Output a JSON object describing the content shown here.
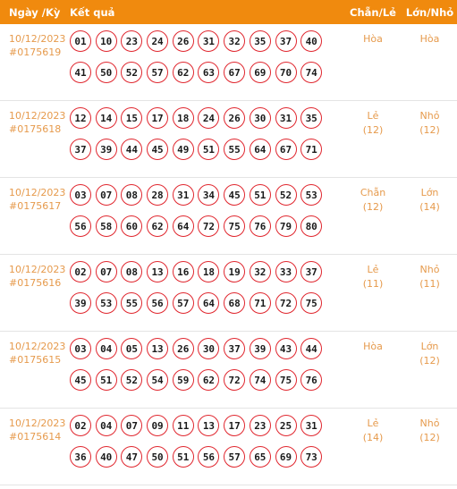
{
  "header": {
    "date": "Ngày /Kỳ",
    "result": "Kết quả",
    "even_odd": "Chẵn/Lẻ",
    "big_small": "Lớn/Nhỏ"
  },
  "rows": [
    {
      "date": "10/12/2023",
      "id": "#0175619",
      "line1": [
        "01",
        "10",
        "23",
        "24",
        "26",
        "31",
        "32",
        "35",
        "37",
        "40"
      ],
      "line2": [
        "41",
        "50",
        "52",
        "57",
        "62",
        "63",
        "67",
        "69",
        "70",
        "74"
      ],
      "even_odd": "Hòa",
      "even_odd_count": "",
      "big_small": "Hòa",
      "big_small_count": ""
    },
    {
      "date": "10/12/2023",
      "id": "#0175618",
      "line1": [
        "12",
        "14",
        "15",
        "17",
        "18",
        "24",
        "26",
        "30",
        "31",
        "35"
      ],
      "line2": [
        "37",
        "39",
        "44",
        "45",
        "49",
        "51",
        "55",
        "64",
        "67",
        "71"
      ],
      "even_odd": "Lẻ",
      "even_odd_count": "(12)",
      "big_small": "Nhỏ",
      "big_small_count": "(12)"
    },
    {
      "date": "10/12/2023",
      "id": "#0175617",
      "line1": [
        "03",
        "07",
        "08",
        "28",
        "31",
        "34",
        "45",
        "51",
        "52",
        "53"
      ],
      "line2": [
        "56",
        "58",
        "60",
        "62",
        "64",
        "72",
        "75",
        "76",
        "79",
        "80"
      ],
      "even_odd": "Chẵn",
      "even_odd_count": "(12)",
      "big_small": "Lớn",
      "big_small_count": "(14)"
    },
    {
      "date": "10/12/2023",
      "id": "#0175616",
      "line1": [
        "02",
        "07",
        "08",
        "13",
        "16",
        "18",
        "19",
        "32",
        "33",
        "37"
      ],
      "line2": [
        "39",
        "53",
        "55",
        "56",
        "57",
        "64",
        "68",
        "71",
        "72",
        "75"
      ],
      "even_odd": "Lẻ",
      "even_odd_count": "(11)",
      "big_small": "Nhỏ",
      "big_small_count": "(11)"
    },
    {
      "date": "10/12/2023",
      "id": "#0175615",
      "line1": [
        "03",
        "04",
        "05",
        "13",
        "26",
        "30",
        "37",
        "39",
        "43",
        "44"
      ],
      "line2": [
        "45",
        "51",
        "52",
        "54",
        "59",
        "62",
        "72",
        "74",
        "75",
        "76"
      ],
      "even_odd": "Hòa",
      "even_odd_count": "",
      "big_small": "Lớn",
      "big_small_count": "(12)"
    },
    {
      "date": "10/12/2023",
      "id": "#0175614",
      "line1": [
        "02",
        "04",
        "07",
        "09",
        "11",
        "13",
        "17",
        "23",
        "25",
        "31"
      ],
      "line2": [
        "36",
        "40",
        "47",
        "50",
        "51",
        "56",
        "57",
        "65",
        "69",
        "73"
      ],
      "even_odd": "Lẻ",
      "even_odd_count": "(14)",
      "big_small": "Nhỏ",
      "big_small_count": "(12)"
    }
  ],
  "colors": {
    "header_bg": "#f08a0e",
    "accent_text": "#e69a4c",
    "ball_border": "#e0262e"
  }
}
